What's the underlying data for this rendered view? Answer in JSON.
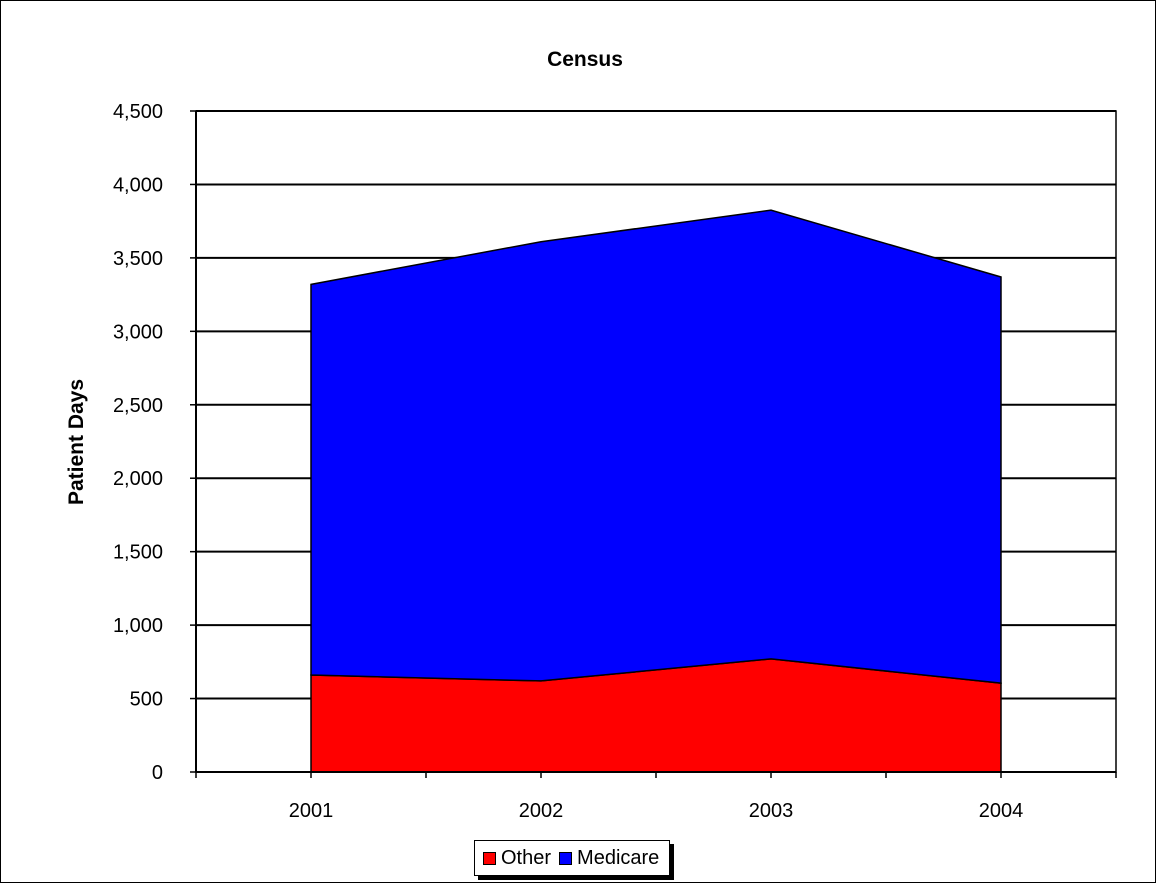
{
  "chart_data": {
    "type": "area",
    "stacked": true,
    "title": "Census",
    "ylabel": "Patient Days",
    "xlabel": "",
    "categories": [
      "2001",
      "2002",
      "2003",
      "2004"
    ],
    "ylim": [
      0,
      4500
    ],
    "ytick_step": 500,
    "ytick_labels": [
      "0",
      "500",
      "1,000",
      "1,500",
      "2,000",
      "2,500",
      "3,000",
      "3,500",
      "4,000",
      "4,500"
    ],
    "grid": true,
    "legend_position": "bottom",
    "series": [
      {
        "name": "Other",
        "color": "#ff0000",
        "values": [
          660,
          620,
          770,
          605
        ]
      },
      {
        "name": "Medicare",
        "color": "#0000ff",
        "values": [
          2660,
          2990,
          3055,
          2765
        ]
      }
    ]
  }
}
